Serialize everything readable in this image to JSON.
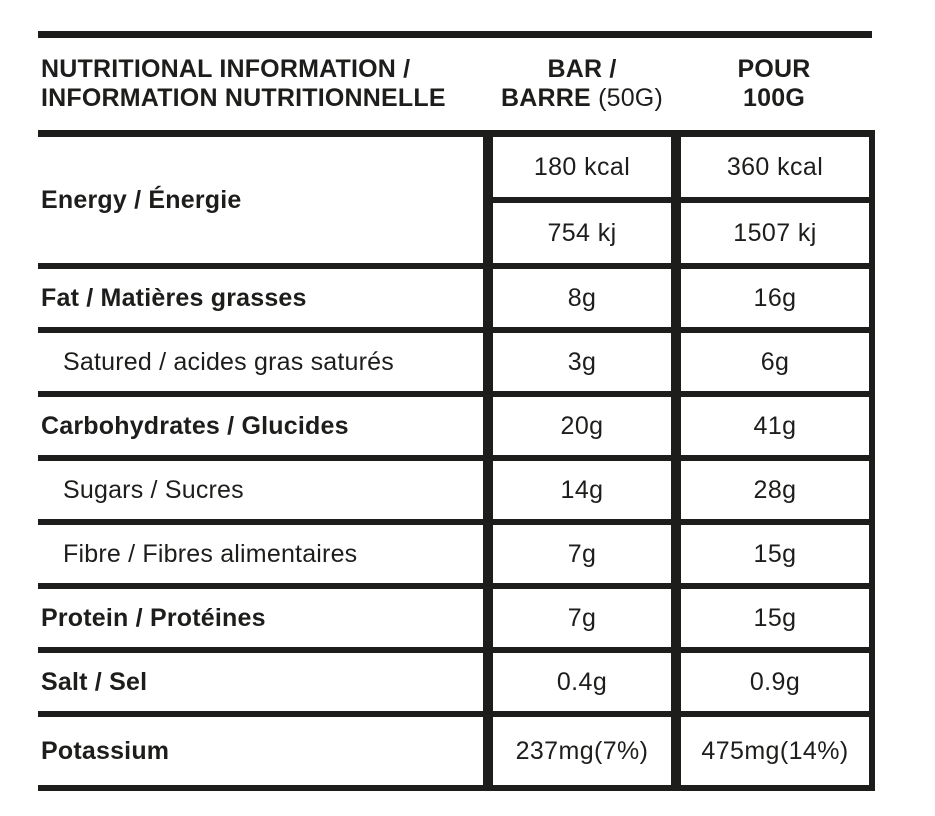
{
  "table": {
    "header": {
      "col1_line1": "NUTRITIONAL INFORMATION /",
      "col1_line2": "INFORMATION NUTRITIONNELLE",
      "col2_line1": "BAR /",
      "col2_line2_bold": "BARRE ",
      "col2_line2_note": "(50G)",
      "col3_line1": "POUR",
      "col3_line2": "100G"
    },
    "energy": {
      "label": "Energy / Énergie",
      "bar_kcal": "180 kcal",
      "per100_kcal": "360 kcal",
      "bar_kj": "754 kj",
      "per100_kj": "1507 kj"
    },
    "rows": [
      {
        "label": "Fat / Matières grasses",
        "bar": "8g",
        "per100": "16g"
      },
      {
        "label": "Satured / acides gras saturés",
        "bar": "3g",
        "per100": "6g"
      },
      {
        "label": "Carbohydrates / Glucides",
        "bar": "20g",
        "per100": "41g"
      },
      {
        "label": "Sugars / Sucres",
        "bar": "14g",
        "per100": "28g"
      },
      {
        "label": "Fibre / Fibres alimentaires",
        "bar": "7g",
        "per100": "15g"
      },
      {
        "label": "Protein / Protéines",
        "bar": "7g",
        "per100": "15g"
      },
      {
        "label": "Salt / Sel",
        "bar": "0.4g",
        "per100": "0.9g"
      },
      {
        "label": "Potassium",
        "bar": "237mg(7%)",
        "per100": "475mg(14%)"
      }
    ],
    "colors": {
      "ink": "#1d1d1b",
      "background": "#ffffff"
    }
  }
}
